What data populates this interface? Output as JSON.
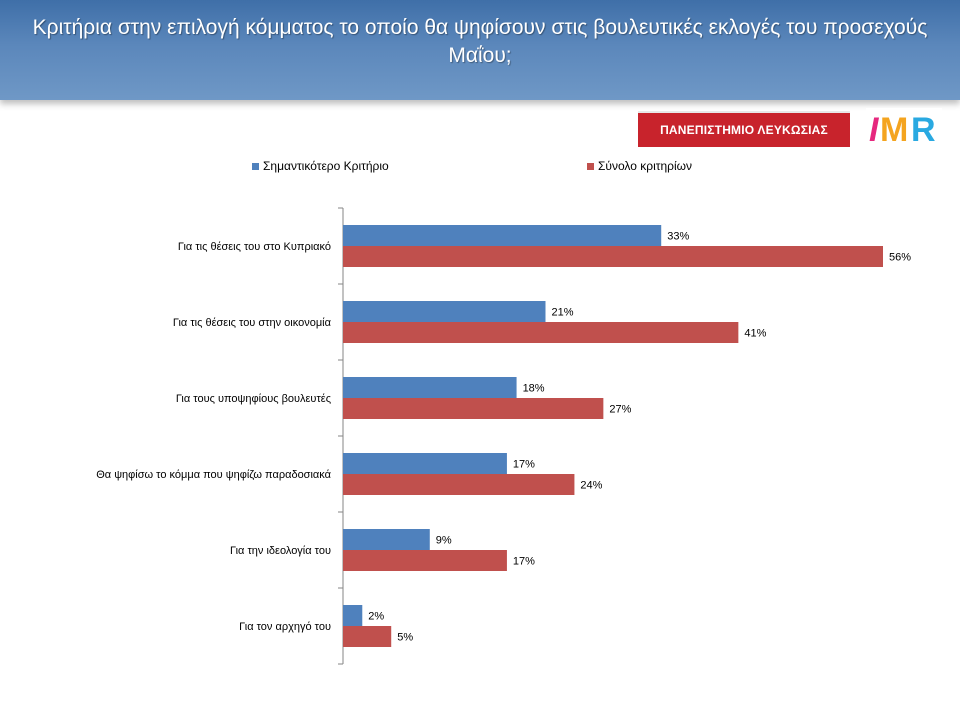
{
  "title": "Κριτήρια στην επιλογή κόμματος το οποίο θα ψηφίσουν στις βουλευτικές εκλογές του προσεχούς Μαΐου;",
  "logos": {
    "university": "ΠΑΝΕΠΙΣΤΗΜΙΟ ΛΕΥΚΩΣΙΑΣ",
    "imr": "IMR"
  },
  "colors": {
    "series_1": "#4f81bd",
    "series_2": "#c0504d",
    "header": "#4a78b0"
  },
  "chart_data": {
    "type": "bar",
    "orientation": "horizontal",
    "title": "",
    "xlabel": "",
    "ylabel": "",
    "xlim": [
      0,
      60
    ],
    "grid": false,
    "legend": "top",
    "categories": [
      "Για τις θέσεις του στο Κυπριακό",
      "Για τις θέσεις του στην οικονομία",
      "Για τους υποψηφίους βουλευτές",
      "Θα ψηφίσω το κόμμα που ψηφίζω παραδοσιακά",
      "Για την ιδεολογία του",
      "Για τον αρχηγό του"
    ],
    "series": [
      {
        "name": "Σημαντικότερο Κριτήριο",
        "values": [
          33,
          21,
          18,
          17,
          9,
          2
        ],
        "labels": [
          "33%",
          "21%",
          "18%",
          "17%",
          "9%",
          "2%"
        ]
      },
      {
        "name": "Σύνολο κριτηρίων",
        "values": [
          56,
          41,
          27,
          24,
          17,
          5
        ],
        "labels": [
          "56%",
          "41%",
          "27%",
          "24%",
          "17%",
          "5%"
        ]
      }
    ]
  }
}
